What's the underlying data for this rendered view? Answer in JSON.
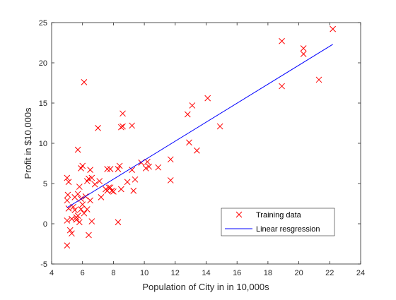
{
  "chart_data": {
    "type": "scatter",
    "title": "",
    "xlabel": "Population of City in in 10,000s",
    "ylabel": "Profit in $10,000s",
    "xlim": [
      4,
      24
    ],
    "ylim": [
      -5,
      25
    ],
    "xticks": [
      4,
      6,
      8,
      10,
      12,
      14,
      16,
      18,
      20,
      22,
      24
    ],
    "yticks": [
      -5,
      0,
      5,
      10,
      15,
      20,
      25
    ],
    "xtick_labels": [
      "4",
      "6",
      "8",
      "10",
      "12",
      "14",
      "16",
      "18",
      "20",
      "22",
      "24"
    ],
    "ytick_labels": [
      "-5",
      "0",
      "5",
      "10",
      "15",
      "20",
      "25"
    ],
    "grid": false,
    "legend_position": "bottom-right",
    "series": [
      {
        "name": "Training data",
        "type": "scatter",
        "marker": "x",
        "color": "#ff0000",
        "points": [
          [
            5.0,
            5.7
          ],
          [
            5.1,
            5.2
          ],
          [
            5.05,
            3.6
          ],
          [
            5.0,
            2.9
          ],
          [
            5.1,
            1.9
          ],
          [
            5.0,
            0.4
          ],
          [
            5.0,
            -2.7
          ],
          [
            5.2,
            -0.8
          ],
          [
            5.3,
            -1.2
          ],
          [
            5.3,
            0.6
          ],
          [
            5.4,
            2.1
          ],
          [
            5.5,
            3.3
          ],
          [
            5.5,
            1.7
          ],
          [
            5.6,
            0.8
          ],
          [
            5.6,
            0.5
          ],
          [
            5.7,
            3.7
          ],
          [
            5.7,
            1.0
          ],
          [
            5.8,
            0.2
          ],
          [
            5.8,
            4.6
          ],
          [
            5.7,
            9.2
          ],
          [
            5.9,
            3.1
          ],
          [
            5.9,
            1.8
          ],
          [
            6.0,
            2.4
          ],
          [
            6.0,
            7.2
          ],
          [
            5.9,
            6.9
          ],
          [
            6.1,
            17.6
          ],
          [
            6.1,
            1.3
          ],
          [
            6.2,
            3.4
          ],
          [
            6.3,
            1.8
          ],
          [
            6.3,
            5.3
          ],
          [
            6.4,
            5.6
          ],
          [
            6.4,
            -1.4
          ],
          [
            6.5,
            6.7
          ],
          [
            6.5,
            2.9
          ],
          [
            6.6,
            5.7
          ],
          [
            6.6,
            0.3
          ],
          [
            6.8,
            4.9
          ],
          [
            7.0,
            11.9
          ],
          [
            7.1,
            5.3
          ],
          [
            7.2,
            3.3
          ],
          [
            7.5,
            4.3
          ],
          [
            7.6,
            4.1
          ],
          [
            7.6,
            6.8
          ],
          [
            7.8,
            6.8
          ],
          [
            7.7,
            4.5
          ],
          [
            7.8,
            4.5
          ],
          [
            7.9,
            4.1
          ],
          [
            8.0,
            4.0
          ],
          [
            8.3,
            6.8
          ],
          [
            8.3,
            0.2
          ],
          [
            8.4,
            7.2
          ],
          [
            8.5,
            12.0
          ],
          [
            8.6,
            13.7
          ],
          [
            8.5,
            4.3
          ],
          [
            8.6,
            12.1
          ],
          [
            8.9,
            5.2
          ],
          [
            9.2,
            12.2
          ],
          [
            9.2,
            6.7
          ],
          [
            9.3,
            4.1
          ],
          [
            9.4,
            5.5
          ],
          [
            9.8,
            7.6
          ],
          [
            10.1,
            6.9
          ],
          [
            10.2,
            7.7
          ],
          [
            10.3,
            7.1
          ],
          [
            10.9,
            7.0
          ],
          [
            11.7,
            8.0
          ],
          [
            11.7,
            5.4
          ],
          [
            12.8,
            13.6
          ],
          [
            12.9,
            10.1
          ],
          [
            13.1,
            14.7
          ],
          [
            13.4,
            9.1
          ],
          [
            14.1,
            15.6
          ],
          [
            14.9,
            12.1
          ],
          [
            18.9,
            22.7
          ],
          [
            18.9,
            17.1
          ],
          [
            20.3,
            21.8
          ],
          [
            20.3,
            21.1
          ],
          [
            21.3,
            17.9
          ],
          [
            22.2,
            24.2
          ]
        ]
      },
      {
        "name": "Linear resgression",
        "type": "line",
        "color": "#0000ff",
        "points": [
          [
            5.0,
            2.0
          ],
          [
            22.2,
            22.3
          ]
        ]
      }
    ]
  }
}
